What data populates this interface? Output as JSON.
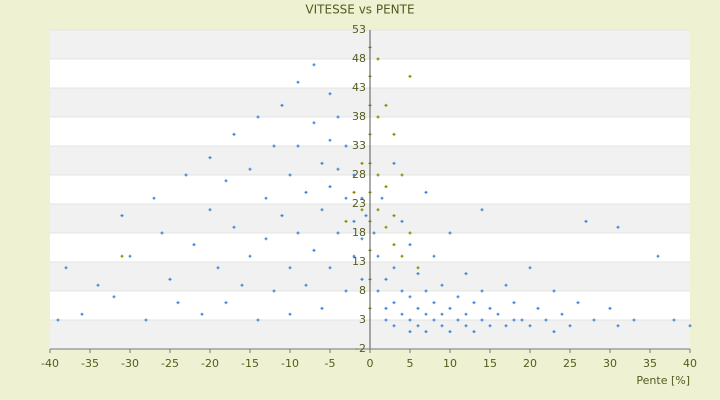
{
  "chart_data": {
    "type": "scatter",
    "title": "VITESSE vs PENTE",
    "x_label": "Pente [%]",
    "xlim": [
      -40,
      40
    ],
    "xticks": [
      -40,
      -35,
      -30,
      -25,
      -20,
      -15,
      -10,
      -5,
      0,
      5,
      10,
      15,
      20,
      25,
      30,
      35,
      40
    ],
    "ylim": [
      -2,
      53
    ],
    "yticks": [
      -2,
      3,
      8,
      13,
      18,
      23,
      28,
      33,
      38,
      43,
      48,
      53
    ],
    "grid": true,
    "series": [
      {
        "color": "#3b86d6",
        "x": [
          -38,
          -39,
          -36,
          -34,
          -32,
          -31,
          -30,
          -28,
          -27,
          -26,
          -25,
          -24,
          -23,
          -22,
          -21,
          -20,
          -20,
          -19,
          -18,
          -18,
          -17,
          -17,
          -16,
          -15,
          -15,
          -14,
          -14,
          -13,
          -13,
          -12,
          -12,
          -11,
          -11,
          -10,
          -10,
          -10,
          -9,
          -9,
          -9,
          -8,
          -8,
          -7,
          -7,
          -7,
          -6,
          -6,
          -6,
          -5,
          -5,
          -5,
          -5,
          -4,
          -4,
          -4,
          -3,
          -3,
          -3,
          -2,
          -2,
          -2,
          -1,
          -1,
          -1,
          -0.5,
          0.5,
          1,
          1,
          1.5,
          2,
          2,
          2,
          3,
          3,
          3,
          3,
          4,
          4,
          4,
          5,
          5,
          5,
          5,
          6,
          6,
          6,
          7,
          7,
          7,
          7,
          8,
          8,
          8,
          9,
          9,
          9,
          10,
          10,
          10,
          11,
          11,
          12,
          12,
          12,
          13,
          13,
          14,
          14,
          14,
          15,
          15,
          16,
          17,
          17,
          18,
          18,
          19,
          20,
          20,
          21,
          22,
          23,
          23,
          24,
          25,
          26,
          27,
          28,
          30,
          31,
          33,
          36,
          38,
          40,
          31
        ],
        "values": [
          12,
          3,
          4,
          9,
          7,
          21,
          14,
          3,
          24,
          18,
          10,
          6,
          28,
          16,
          4,
          31,
          22,
          12,
          27,
          6,
          35,
          19,
          9,
          29,
          14,
          38,
          3,
          24,
          17,
          33,
          8,
          40,
          21,
          28,
          12,
          4,
          44,
          33,
          18,
          25,
          9,
          47,
          37,
          15,
          30,
          22,
          5,
          42,
          34,
          26,
          12,
          38,
          29,
          18,
          33,
          24,
          8,
          28,
          20,
          14,
          24,
          17,
          10,
          21,
          18,
          14,
          8,
          24,
          10,
          5,
          3,
          30,
          12,
          6,
          2,
          20,
          8,
          4,
          16,
          7,
          3,
          1,
          11,
          5,
          2,
          25,
          8,
          4,
          1,
          14,
          6,
          3,
          9,
          4,
          2,
          18,
          5,
          1,
          7,
          3,
          11,
          4,
          2,
          6,
          1,
          22,
          8,
          3,
          5,
          2,
          4,
          9,
          2,
          6,
          3,
          3,
          12,
          2,
          5,
          3,
          8,
          1,
          4,
          2,
          6,
          20,
          3,
          5,
          2,
          3,
          14,
          3,
          2,
          19
        ]
      },
      {
        "color": "#8a8a00",
        "x": [
          0,
          0,
          0,
          0,
          0,
          0,
          0,
          0,
          0,
          0,
          1,
          1,
          1,
          1,
          2,
          2,
          2,
          3,
          3,
          3,
          4,
          4,
          5,
          6,
          -1,
          -1,
          -2,
          -3,
          5,
          -31
        ],
        "values": [
          50,
          45,
          40,
          35,
          30,
          25,
          20,
          15,
          10,
          5,
          48,
          38,
          28,
          22,
          40,
          26,
          19,
          35,
          21,
          16,
          28,
          14,
          18,
          12,
          30,
          22,
          25,
          20,
          45,
          14
        ]
      }
    ]
  }
}
